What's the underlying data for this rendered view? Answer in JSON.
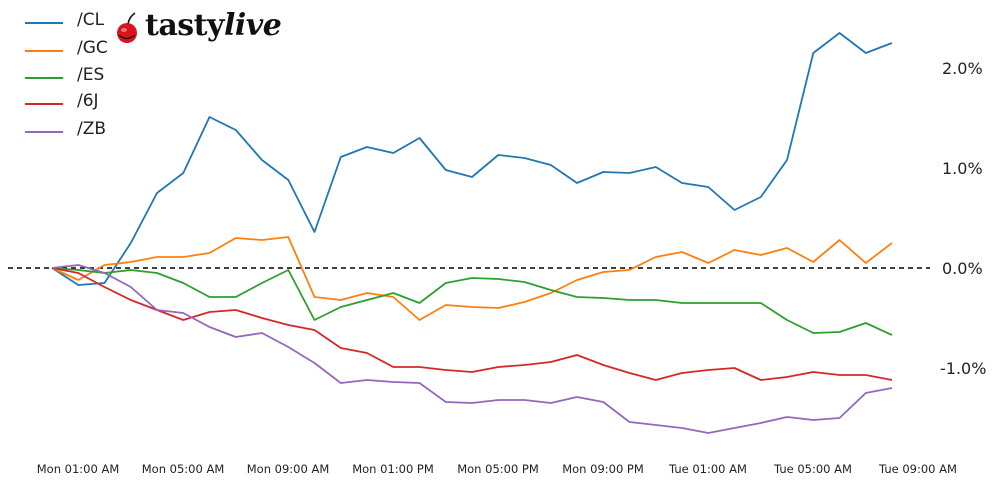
{
  "logo": {
    "text_plain": "tasty",
    "text_italic": "live"
  },
  "chart_data": {
    "type": "line",
    "title": "",
    "xlabel": "",
    "ylabel": "",
    "x_unit": "hours from Mon 12:00 AM",
    "x": [
      0,
      1,
      2,
      3,
      4,
      5,
      6,
      7,
      8,
      9,
      10,
      11,
      12,
      13,
      14,
      15,
      16,
      17,
      18,
      19,
      20,
      21,
      22,
      23,
      24,
      25,
      26,
      27,
      28,
      29,
      30,
      31,
      32
    ],
    "x_ticks": [
      {
        "hour": 1,
        "label": "Mon 01:00 AM"
      },
      {
        "hour": 5,
        "label": "Mon 05:00 AM"
      },
      {
        "hour": 9,
        "label": "Mon 09:00 AM"
      },
      {
        "hour": 13,
        "label": "Mon 01:00 PM"
      },
      {
        "hour": 17,
        "label": "Mon 05:00 PM"
      },
      {
        "hour": 21,
        "label": "Mon 09:00 PM"
      },
      {
        "hour": 25,
        "label": "Tue 01:00 AM"
      },
      {
        "hour": 29,
        "label": "Tue 05:00 AM"
      },
      {
        "hour": 33,
        "label": "Tue 09:00 AM"
      }
    ],
    "y_ticks": [
      {
        "value": 2.0,
        "label": "2.0%"
      },
      {
        "value": 1.0,
        "label": "1.0%"
      },
      {
        "value": 0.0,
        "label": "0.0%"
      },
      {
        "value": -1.0,
        "label": "-1.0%"
      }
    ],
    "ylim": [
      -1.9,
      2.68
    ],
    "xlim": [
      -2,
      35
    ],
    "y_axis_position": "right",
    "grid": false,
    "reference_line": {
      "value": 0,
      "style": "dashed",
      "color": "#000000"
    },
    "legend_position": "top-left",
    "series": [
      {
        "name": "/CL",
        "color": "#1f77b4",
        "values": [
          0,
          -0.17,
          -0.15,
          0.25,
          0.75,
          0.95,
          1.51,
          1.38,
          1.08,
          0.88,
          0.36,
          1.11,
          1.21,
          1.15,
          1.3,
          0.98,
          0.91,
          1.13,
          1.1,
          1.03,
          0.85,
          0.96,
          0.95,
          1.01,
          0.85,
          0.81,
          0.58,
          0.71,
          1.08,
          2.15,
          2.35,
          2.15,
          2.25
        ]
      },
      {
        "name": "/GC",
        "color": "#ff7f0e",
        "values": [
          0,
          -0.12,
          0.03,
          0.06,
          0.11,
          0.11,
          0.15,
          0.3,
          0.28,
          0.31,
          -0.29,
          -0.32,
          -0.25,
          -0.29,
          -0.52,
          -0.37,
          -0.39,
          -0.4,
          -0.34,
          -0.25,
          -0.12,
          -0.04,
          -0.02,
          0.11,
          0.16,
          0.05,
          0.18,
          0.13,
          0.2,
          0.06,
          0.28,
          0.05,
          0.25
        ]
      },
      {
        "name": "/ES",
        "color": "#2ca02c",
        "values": [
          0,
          -0.02,
          -0.05,
          -0.02,
          -0.05,
          -0.15,
          -0.29,
          -0.29,
          -0.15,
          -0.02,
          -0.52,
          -0.39,
          -0.32,
          -0.25,
          -0.35,
          -0.15,
          -0.1,
          -0.11,
          -0.14,
          -0.22,
          -0.29,
          -0.3,
          -0.32,
          -0.32,
          -0.35,
          -0.35,
          -0.35,
          -0.35,
          -0.52,
          -0.65,
          -0.64,
          -0.55,
          -0.67
        ]
      },
      {
        "name": "/6J",
        "color": "#d62728",
        "values": [
          0,
          -0.05,
          -0.19,
          -0.32,
          -0.42,
          -0.52,
          -0.44,
          -0.42,
          -0.5,
          -0.57,
          -0.62,
          -0.8,
          -0.85,
          -0.99,
          -0.99,
          -1.02,
          -1.04,
          -0.99,
          -0.97,
          -0.94,
          -0.87,
          -0.97,
          -1.05,
          -1.12,
          -1.05,
          -1.02,
          -1.0,
          -1.12,
          -1.09,
          -1.04,
          -1.07,
          -1.07,
          -1.12
        ]
      },
      {
        "name": "/ZB",
        "color": "#9467bd",
        "values": [
          0,
          0.03,
          -0.05,
          -0.19,
          -0.42,
          -0.45,
          -0.59,
          -0.69,
          -0.65,
          -0.79,
          -0.95,
          -1.15,
          -1.12,
          -1.14,
          -1.15,
          -1.34,
          -1.35,
          -1.32,
          -1.32,
          -1.35,
          -1.29,
          -1.34,
          -1.54,
          -1.57,
          -1.6,
          -1.65,
          -1.6,
          -1.55,
          -1.49,
          -1.52,
          -1.5,
          -1.25,
          -1.2
        ]
      }
    ]
  }
}
